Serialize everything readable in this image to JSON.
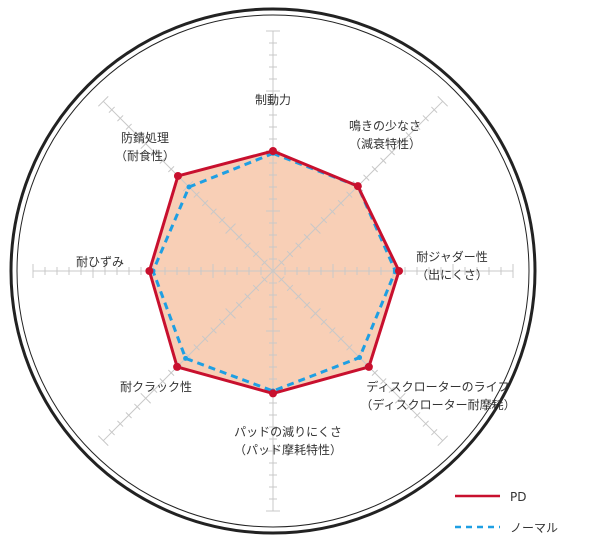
{
  "chart_data": {
    "type": "radar",
    "axes": [
      {
        "label": [
          "制動力"
        ]
      },
      {
        "label": [
          "鳴きの少なさ",
          "（減衰特性）"
        ]
      },
      {
        "label": [
          "耐ジャダー性",
          "（出にくさ）"
        ]
      },
      {
        "label": [
          "ディスクローターのライフ",
          "（ディスクローター耐摩耗）"
        ]
      },
      {
        "label": [
          "パッドの減りにくさ",
          "（パッド摩耗特性）"
        ]
      },
      {
        "label": [
          "耐クラック性"
        ]
      },
      {
        "label": [
          "耐ひずみ"
        ]
      },
      {
        "label": [
          "防錆処理",
          "（耐食性）"
        ]
      }
    ],
    "range": [
      0,
      20
    ],
    "series": [
      {
        "name": "PD",
        "values": [
          10,
          10,
          10.5,
          11.3,
          10.2,
          11.3,
          10.3,
          11.2
        ],
        "color": "#c8102e",
        "style": "solid",
        "markers": true,
        "fill": "#f8cfb6"
      },
      {
        "name": "ノーマル",
        "values": [
          9.8,
          10,
          10.2,
          10.2,
          10,
          10.3,
          10,
          9.9
        ],
        "color": "#1e9fe3",
        "style": "dashed"
      }
    ],
    "legend": "bottom-right",
    "grid": true
  }
}
